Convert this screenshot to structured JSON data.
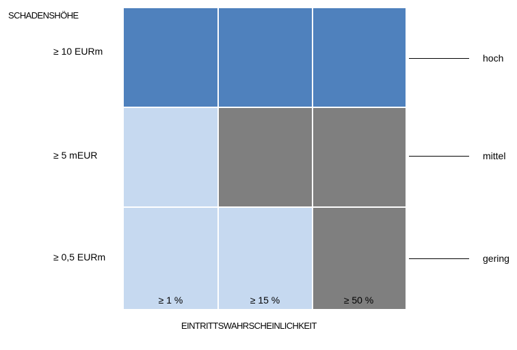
{
  "y_axis_title": "SCHADENSHÖHE",
  "x_axis_title": "EINTRITTSWAHRSCHEINLICHKEIT",
  "rows": [
    {
      "label": "≥ 10 EURm",
      "levels": [
        "hoch",
        "hoch",
        "hoch"
      ]
    },
    {
      "label": "≥ 5 mEUR",
      "levels": [
        "gering",
        "mittel",
        "mittel"
      ]
    },
    {
      "label": "≥ 0,5 EURm",
      "levels": [
        "gering",
        "gering",
        "mittel"
      ]
    }
  ],
  "columns": [
    "≥ 1 %",
    "≥ 15 %",
    "≥ 50 %"
  ],
  "legend": [
    {
      "label": "hoch",
      "color": "#4f81bd"
    },
    {
      "label": "mittel",
      "color": "#7f7f7f"
    },
    {
      "label": "gering",
      "color": "#c6d9f0"
    }
  ]
}
